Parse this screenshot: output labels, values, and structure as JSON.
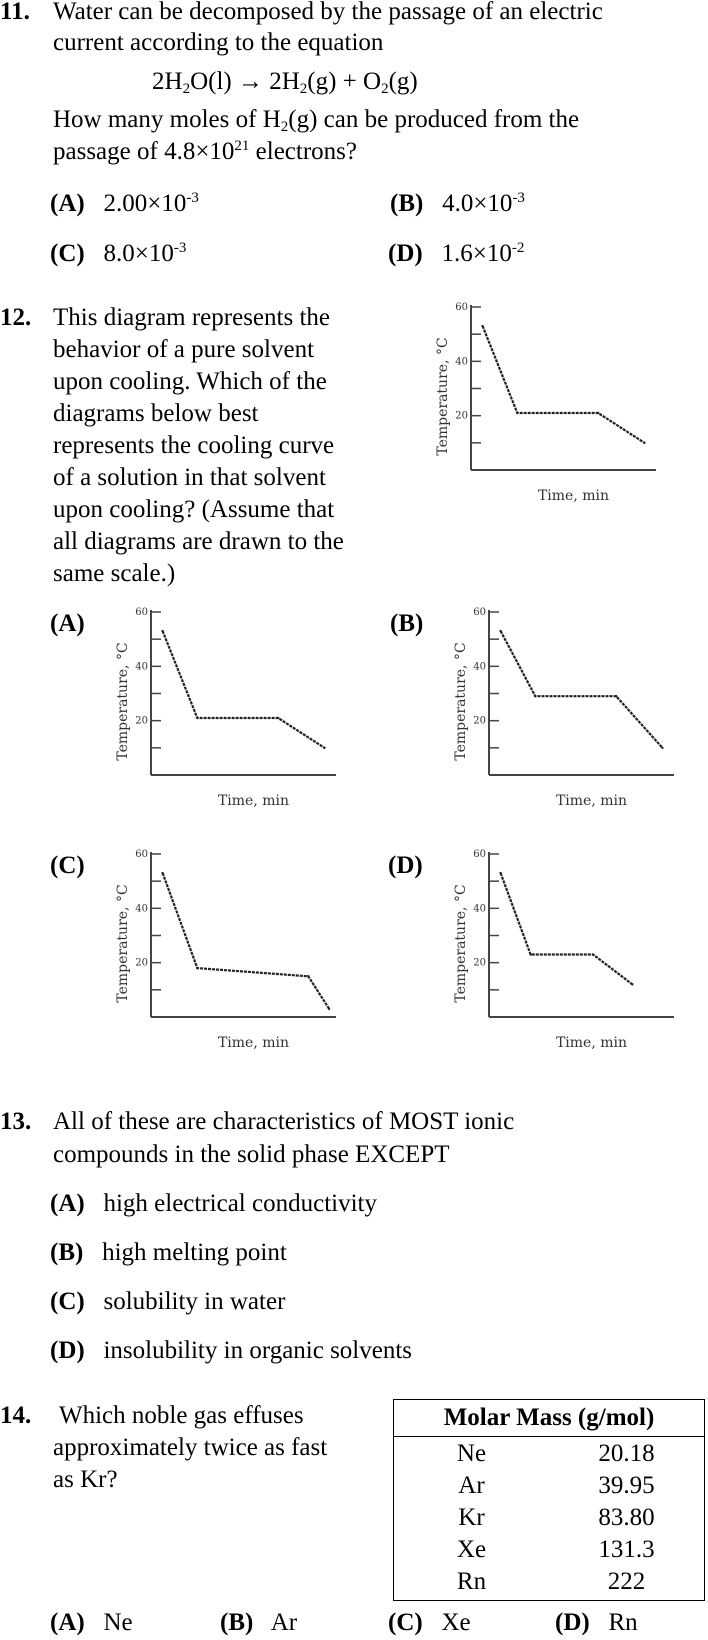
{
  "q11": {
    "number": "11.",
    "line1": "Water can be decomposed by the passage of an electric",
    "line2": "current according to the equation",
    "equation": {
      "p1": "2H",
      "s1": "2",
      "p2": "O(l)",
      "arrow": "→",
      "p3": "2H",
      "s2": "2",
      "p4": "(g) + O",
      "s3": "2",
      "p5": "(g)"
    },
    "line3a": "How many moles of H",
    "line3sub": "2",
    "line3b": "(g) can be produced from the",
    "line4a": "passage of 4.8×10",
    "line4sup": "21",
    "line4b": " electrons?",
    "options": [
      {
        "label": "(A)",
        "mant": "2.00×10",
        "exp": "-3"
      },
      {
        "label": "(B)",
        "mant": "4.0×10",
        "exp": "-3"
      },
      {
        "label": "(C)",
        "mant": "8.0×10",
        "exp": "-3"
      },
      {
        "label": "(D)",
        "mant": "1.6×10",
        "exp": "-2"
      }
    ]
  },
  "q12": {
    "number": "12.",
    "lines": [
      "This diagram represents the",
      "behavior of a pure solvent",
      "upon cooling. Which of the",
      "diagrams below best",
      "represents the cooling curve",
      "of a solution in that solvent",
      "upon cooling? (Assume that",
      "all diagrams are drawn to the",
      "same scale.)"
    ],
    "option_labels": [
      "(A)",
      "(B)",
      "(C)",
      "(D)"
    ]
  },
  "chart_data": [
    {
      "type": "line",
      "id": "pure-solvent",
      "xlabel": "Time, min",
      "ylabel": "Temperature, °C",
      "ylim": [
        0,
        60
      ],
      "yticks": [
        20,
        40,
        60
      ],
      "series": [
        {
          "x": [
            0.5,
            2,
            5.5,
            7.5
          ],
          "y": [
            53,
            21,
            21,
            10
          ]
        }
      ]
    },
    {
      "type": "line",
      "id": "option-a",
      "xlabel": "Time, min",
      "ylabel": "Temperature, °C",
      "ylim": [
        0,
        60
      ],
      "yticks": [
        20,
        40,
        60
      ],
      "series": [
        {
          "x": [
            0.5,
            2,
            5.5,
            7.5
          ],
          "y": [
            53,
            21,
            21,
            10
          ]
        }
      ]
    },
    {
      "type": "line",
      "id": "option-b",
      "xlabel": "Time, min",
      "ylabel": "Temperature, °C",
      "ylim": [
        0,
        60
      ],
      "yticks": [
        20,
        40,
        60
      ],
      "series": [
        {
          "x": [
            0.5,
            2,
            5.5,
            7.5
          ],
          "y": [
            53,
            29,
            29,
            10
          ]
        }
      ]
    },
    {
      "type": "line",
      "id": "option-c",
      "xlabel": "Time, min",
      "ylabel": "Temperature, °C",
      "ylim": [
        0,
        60
      ],
      "yticks": [
        20,
        40,
        60
      ],
      "series": [
        {
          "x": [
            0.5,
            2,
            6.8,
            7.7
          ],
          "y": [
            53,
            18,
            15,
            3
          ]
        }
      ]
    },
    {
      "type": "line",
      "id": "option-d",
      "xlabel": "Time, min",
      "ylabel": "Temperature, °C",
      "ylim": [
        0,
        60
      ],
      "yticks": [
        20,
        40,
        60
      ],
      "series": [
        {
          "x": [
            0.5,
            1.8,
            4.5,
            6.2
          ],
          "y": [
            53,
            23,
            23,
            12
          ]
        }
      ]
    }
  ],
  "q13": {
    "number": "13.",
    "line1": "All of these are characteristics of MOST ionic",
    "line2": "compounds in the solid phase EXCEPT",
    "options": [
      {
        "label": "(A)",
        "text": "high electrical conductivity"
      },
      {
        "label": "(B)",
        "text": "high melting point"
      },
      {
        "label": "(C)",
        "text": "solubility in water"
      },
      {
        "label": "(D)",
        "text": "insolubility in organic solvents"
      }
    ]
  },
  "q14": {
    "number": "14.",
    "lines": [
      "Which noble gas effuses",
      "approximately twice as fast",
      "as Kr?"
    ],
    "table": {
      "header": "Molar Mass (g/mol)",
      "rows": [
        {
          "element": "Ne",
          "mass": "20.18"
        },
        {
          "element": "Ar",
          "mass": "39.95"
        },
        {
          "element": "Kr",
          "mass": "83.80"
        },
        {
          "element": "Xe",
          "mass": "131.3"
        },
        {
          "element": "Rn",
          "mass": "222"
        }
      ]
    },
    "options": [
      {
        "label": "(A)",
        "text": "Ne"
      },
      {
        "label": "(B)",
        "text": "Ar"
      },
      {
        "label": "(C)",
        "text": "Xe"
      },
      {
        "label": "(D)",
        "text": "Rn"
      }
    ]
  }
}
